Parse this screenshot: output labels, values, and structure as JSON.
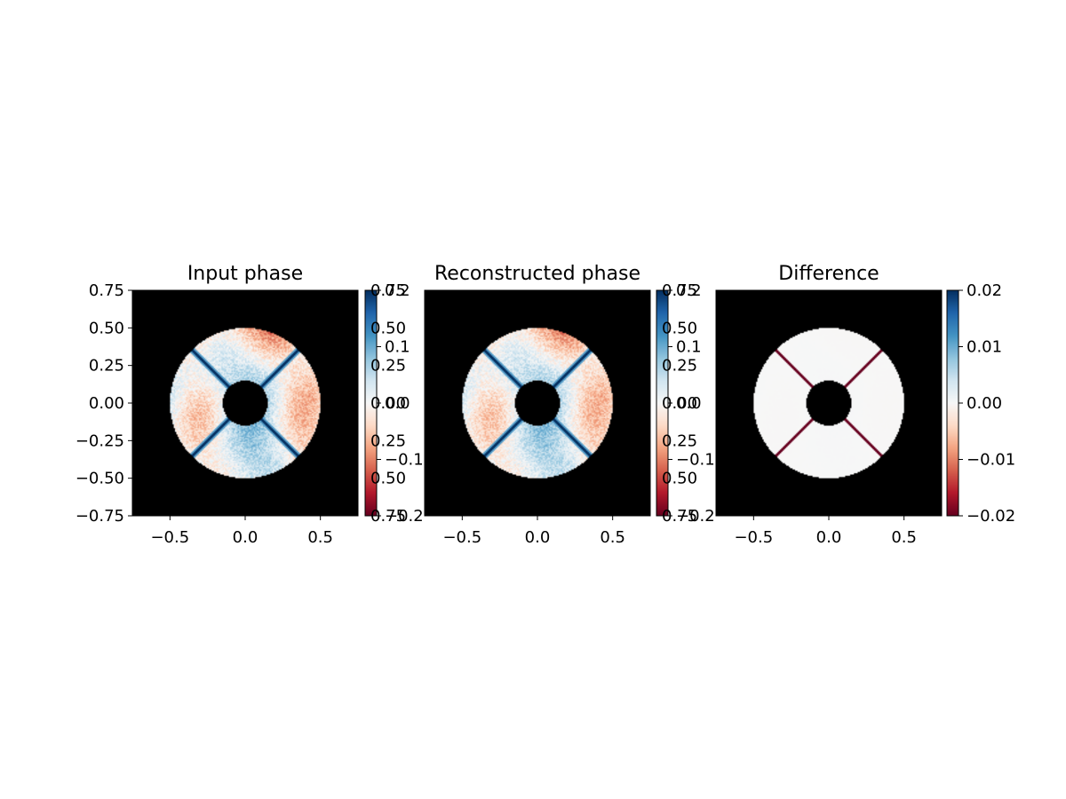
{
  "colors": {
    "background": "#000000",
    "axis": "#000000",
    "cmap": [
      "#67001f",
      "#b2182b",
      "#d6604d",
      "#f4a582",
      "#fddbc7",
      "#f7f7f7",
      "#d1e5f0",
      "#92c5de",
      "#4393c3",
      "#2166ac",
      "#053061"
    ]
  },
  "chart_data": [
    {
      "type": "heatmap",
      "title": "Input phase",
      "xlabel": "",
      "ylabel": "",
      "xlim": [
        -0.75,
        0.75
      ],
      "ylim": [
        -0.75,
        0.75
      ],
      "x_ticks": [
        -0.5,
        0.0,
        0.5
      ],
      "x_tick_labels": [
        "−0.5",
        "0.0",
        "0.5"
      ],
      "y_ticks": [
        0.75,
        0.5,
        0.25,
        0.0,
        -0.25,
        -0.5,
        -0.75
      ],
      "y_tick_labels": [
        "0.75",
        "0.50",
        "0.25",
        "0.00",
        "−0.25",
        "−0.50",
        "−0.75"
      ],
      "grid": false,
      "aperture": {
        "outer_radius": 0.5,
        "inner_radius": 0.15,
        "spider_angles_deg": [
          45,
          135,
          225,
          315
        ]
      },
      "field_amplitude": 0.2,
      "spider_value": 0.2,
      "colorbar": {
        "vmin": -0.2,
        "vmax": 0.2,
        "ticks": [
          0.2,
          0.1,
          0.0,
          -0.1,
          -0.2
        ],
        "tick_labels": [
          "0.2",
          "0.1",
          "0.0",
          "−0.1",
          "−0.2"
        ],
        "overlap_tick_labels": [
          "0.75",
          "0.50",
          "0.25",
          "0.00",
          "0.25",
          "0.50",
          "0.75"
        ]
      }
    },
    {
      "type": "heatmap",
      "title": "Reconstructed phase",
      "xlabel": "",
      "ylabel": "",
      "xlim": [
        -0.75,
        0.75
      ],
      "ylim": [
        -0.75,
        0.75
      ],
      "x_ticks": [
        -0.5,
        0.0,
        0.5
      ],
      "x_tick_labels": [
        "−0.5",
        "0.0",
        "0.5"
      ],
      "grid": false,
      "aperture": {
        "outer_radius": 0.5,
        "inner_radius": 0.15,
        "spider_angles_deg": [
          45,
          135,
          225,
          315
        ]
      },
      "field_amplitude": 0.2,
      "spider_value": 0.2,
      "colorbar": {
        "vmin": -0.2,
        "vmax": 0.2,
        "ticks": [
          0.2,
          0.1,
          0.0,
          -0.1,
          -0.2
        ],
        "tick_labels": [
          "0.2",
          "0.1",
          "0.0",
          "−0.1",
          "−0.2"
        ],
        "overlap_tick_labels": [
          "0.75",
          "0.50",
          "0.25",
          "0.00",
          "0.25",
          "0.50",
          "0.75"
        ]
      }
    },
    {
      "type": "heatmap",
      "title": "Difference",
      "xlabel": "",
      "ylabel": "",
      "xlim": [
        -0.75,
        0.75
      ],
      "ylim": [
        -0.75,
        0.75
      ],
      "x_ticks": [
        -0.5,
        0.0,
        0.5
      ],
      "x_tick_labels": [
        "−0.5",
        "0.0",
        "0.5"
      ],
      "grid": false,
      "aperture": {
        "outer_radius": 0.5,
        "inner_radius": 0.15,
        "spider_angles_deg": [
          45,
          135,
          225,
          315
        ]
      },
      "field_amplitude": 0.0003,
      "spider_edge_value": -0.02,
      "colorbar": {
        "vmin": -0.02,
        "vmax": 0.02,
        "ticks": [
          0.02,
          0.01,
          0.0,
          -0.01,
          -0.02
        ],
        "tick_labels": [
          "0.02",
          "0.01",
          "0.00",
          "−0.01",
          "−0.02"
        ]
      }
    }
  ]
}
